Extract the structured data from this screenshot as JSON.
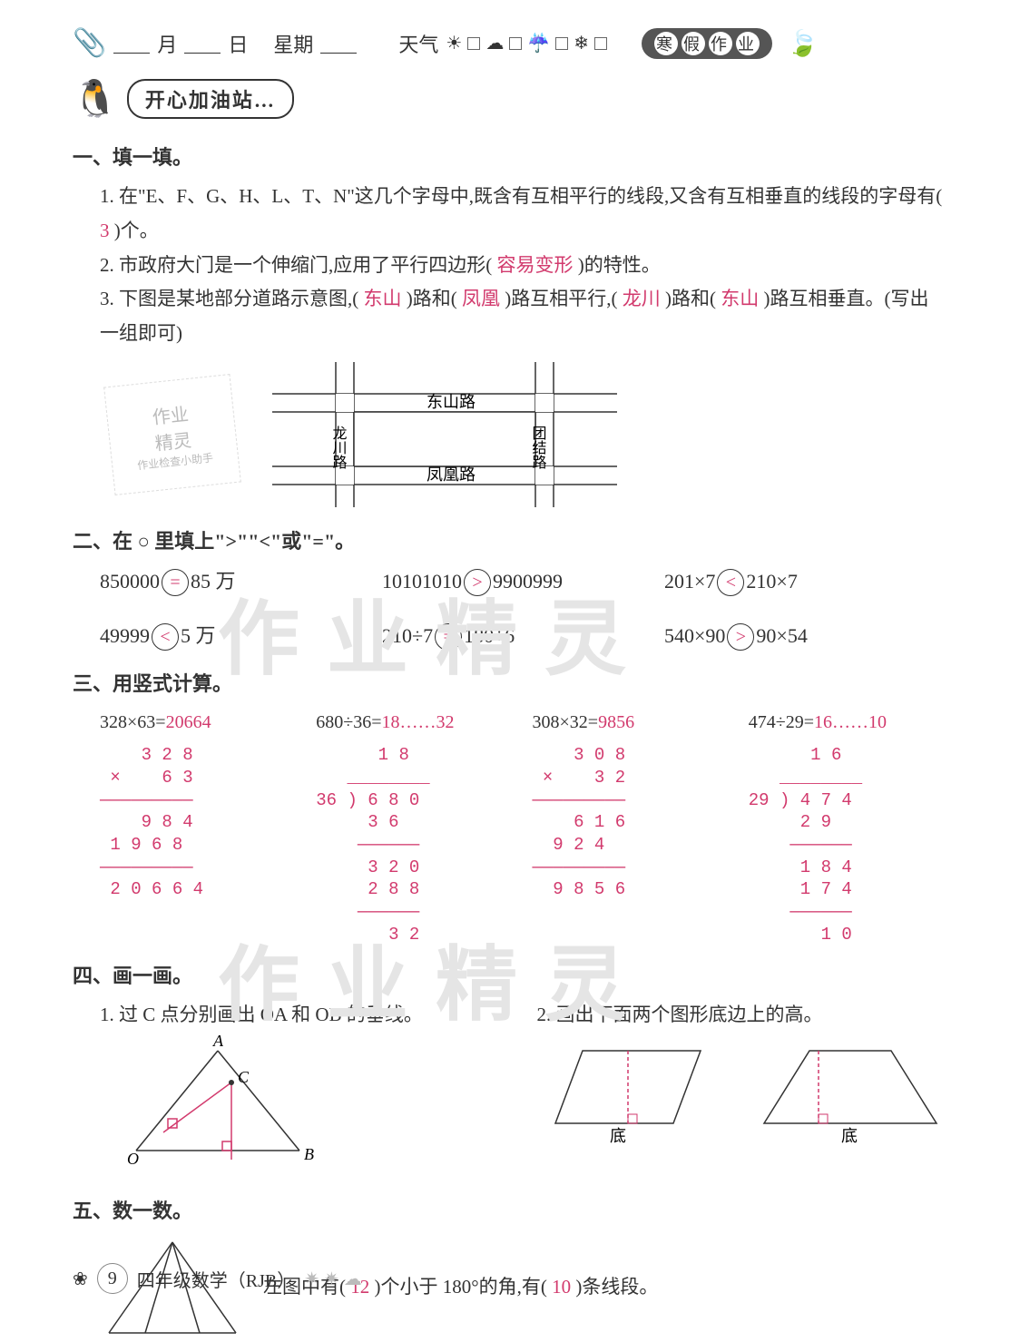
{
  "header": {
    "month_label": "月",
    "day_label": "日",
    "weekday_label": "星期",
    "weather_label": "天气",
    "weather_icons": [
      "☀",
      "☁",
      "☔",
      "❄"
    ],
    "badge_chars": [
      "寒",
      "假",
      "作",
      "业"
    ]
  },
  "station_title": "开心加油站…",
  "s1": {
    "title": "一、填一填。",
    "q1_pre": "1. 在\"E、F、G、H、L、T、N\"这几个字母中,既含有互相平行的线段,又含有互相垂直的线段的字母有(",
    "q1_ans": " 3 ",
    "q1_post": ")个。",
    "q2_pre": "2. 市政府大门是一个伸缩门,应用了平行四边形(",
    "q2_ans": " 容易变形 ",
    "q2_post": ")的特性。",
    "q3_a": "3. 下图是某地部分道路示意图,(",
    "q3_ans1": " 东山 ",
    "q3_b": ")路和(",
    "q3_ans2": " 凤凰 ",
    "q3_c": ")路互相平行,(",
    "q3_ans3": " 龙川 ",
    "q3_d": ")路和(",
    "q3_ans4": " 东山 ",
    "q3_e": ")路互相垂直。(写出一组即可)",
    "map": {
      "road_top": "东山路",
      "road_bottom": "凤凰路",
      "road_left": "龙川路",
      "road_right": "团结路"
    },
    "watermark_card": [
      "作业",
      "精灵",
      "作业检查小助手"
    ]
  },
  "s2": {
    "title": "二、在 ○ 里填上\">\"\"<\"或\"=\"。",
    "items": [
      {
        "l": "850000",
        "op": "=",
        "r": "85 万"
      },
      {
        "l": "10101010",
        "op": ">",
        "r": "9900999"
      },
      {
        "l": "201×7",
        "op": "<",
        "r": "210×7"
      },
      {
        "l": "49999",
        "op": "<",
        "r": "5 万"
      },
      {
        "l": "210÷7",
        "op": "=",
        "r": "180÷6"
      },
      {
        "l": "540×90",
        "op": ">",
        "r": "90×54"
      }
    ]
  },
  "watermarks": [
    "作业精灵",
    "作业精灵"
  ],
  "s3": {
    "title": "三、用竖式计算。",
    "problems": [
      {
        "eq": "328×63=",
        "ans": "20664",
        "work": "    3 2 8\n ×    6 3\n—————————\n    9 8 4\n 1 9 6 8\n—————————\n 2 0 6 6 4"
      },
      {
        "eq": "680÷36=",
        "ans": "18……32",
        "work": "      1 8\n   ________\n36 ) 6 8 0\n     3 6\n    ——————\n     3 2 0\n     2 8 8\n    ——————\n       3 2"
      },
      {
        "eq": "308×32=",
        "ans": "9856",
        "work": "    3 0 8\n ×    3 2\n—————————\n    6 1 6\n  9 2 4\n—————————\n  9 8 5 6"
      },
      {
        "eq": "474÷29=",
        "ans": "16……10",
        "work": "      1 6\n   ________\n29 ) 4 7 4\n     2 9\n    ——————\n     1 8 4\n     1 7 4\n    ——————\n       1 0"
      }
    ]
  },
  "s4": {
    "title": "四、画一画。",
    "q1": "1. 过 C 点分别画出 OA 和 OB 的垂线。",
    "q2": "2. 画出下面两个图形底边上的高。",
    "labels": {
      "A": "A",
      "B": "B",
      "C": "C",
      "O": "O",
      "base": "底"
    }
  },
  "s5": {
    "title": "五、数一数。",
    "text_a": "左图中有(",
    "ans1": " 12 ",
    "text_b": ")个小于 180°的角,有(",
    "ans2": " 10 ",
    "text_c": ")条线段。"
  },
  "footer": {
    "page": "9",
    "subject": "四年级数学（RJB）"
  },
  "colors": {
    "answer": "#d23a6d",
    "text": "#333333",
    "line": "#333333"
  }
}
